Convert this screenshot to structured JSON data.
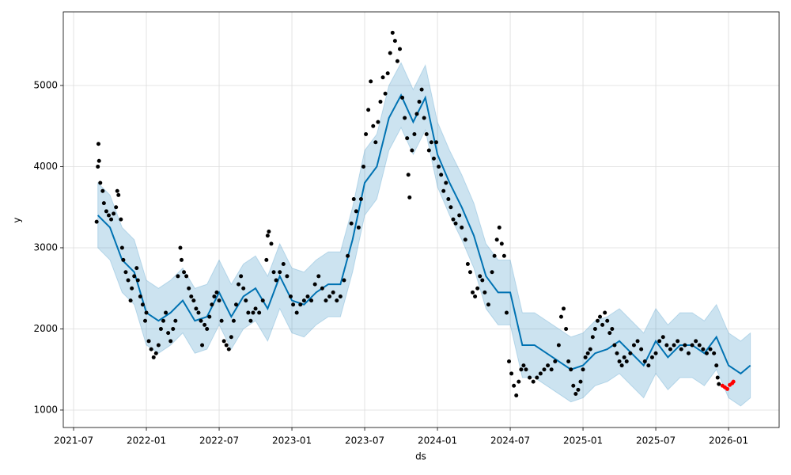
{
  "chart_data": {
    "type": "forecast",
    "x_label": "ds",
    "y_label": "y",
    "grid": true,
    "xlim": [
      -0.85,
      58.17
    ],
    "ylim": [
      785,
      5907
    ],
    "xticks": [
      {
        "value": 0,
        "label": "2021-07"
      },
      {
        "value": 6,
        "label": "2022-01"
      },
      {
        "value": 12,
        "label": "2022-07"
      },
      {
        "value": 18,
        "label": "2023-01"
      },
      {
        "value": 24,
        "label": "2023-07"
      },
      {
        "value": 30,
        "label": "2024-01"
      },
      {
        "value": 36,
        "label": "2024-07"
      },
      {
        "value": 42,
        "label": "2025-01"
      },
      {
        "value": 48,
        "label": "2025-07"
      },
      {
        "value": 54,
        "label": "2026-01"
      }
    ],
    "yticks": [
      1000,
      2000,
      3000,
      4000,
      5000
    ],
    "forecast": {
      "color": "#0072b2",
      "band_color": "#0072b2",
      "x": [
        2,
        3,
        4,
        5,
        6,
        7,
        8,
        9,
        10,
        11,
        12,
        13,
        14,
        15,
        16,
        17,
        18,
        19,
        20,
        21,
        22,
        23,
        24,
        25,
        26,
        27,
        28,
        29,
        30,
        31,
        32,
        33,
        34,
        35,
        36,
        37,
        38,
        39,
        40,
        41,
        42,
        43,
        44,
        45,
        46,
        47,
        48,
        49,
        50,
        51,
        52,
        53,
        54,
        55,
        55.8
      ],
      "values": [
        3400,
        3250,
        2850,
        2700,
        2200,
        2100,
        2200,
        2350,
        2100,
        2150,
        2450,
        2150,
        2400,
        2500,
        2250,
        2650,
        2350,
        2300,
        2450,
        2550,
        2550,
        3100,
        3800,
        4000,
        4600,
        4880,
        4550,
        4850,
        4150,
        3800,
        3500,
        3150,
        2650,
        2450,
        2450,
        1800,
        1800,
        1700,
        1600,
        1500,
        1550,
        1700,
        1750,
        1850,
        1700,
        1550,
        1850,
        1650,
        1800,
        1800,
        1700,
        1900,
        1550,
        1450,
        1550
      ],
      "lower": [
        3000,
        2850,
        2450,
        2300,
        1800,
        1700,
        1800,
        1950,
        1700,
        1750,
        2050,
        1750,
        2000,
        2100,
        1850,
        2250,
        1950,
        1900,
        2050,
        2150,
        2150,
        2700,
        3400,
        3600,
        4200,
        4480,
        4150,
        4450,
        3750,
        3400,
        3100,
        2750,
        2250,
        2050,
        2050,
        1400,
        1400,
        1300,
        1200,
        1100,
        1150,
        1300,
        1350,
        1450,
        1300,
        1150,
        1450,
        1250,
        1400,
        1400,
        1300,
        1500,
        1150,
        1050,
        1150
      ],
      "upper": [
        3800,
        3650,
        3250,
        3100,
        2600,
        2500,
        2600,
        2750,
        2500,
        2550,
        2850,
        2550,
        2800,
        2900,
        2650,
        3050,
        2750,
        2700,
        2850,
        2950,
        2950,
        3500,
        4200,
        4400,
        5000,
        5280,
        4950,
        5250,
        4550,
        4200,
        3900,
        3550,
        3050,
        2850,
        2850,
        2200,
        2200,
        2100,
        2000,
        1900,
        1950,
        2100,
        2150,
        2250,
        2100,
        1950,
        2250,
        2050,
        2200,
        2200,
        2100,
        2300,
        1950,
        1850,
        1950
      ]
    },
    "observed": [
      {
        "color": "#000000",
        "x": [
          1.9,
          2.0,
          2.05,
          2.1,
          2.2,
          2.4,
          2.5,
          2.7,
          2.9,
          3.1,
          3.3,
          3.5,
          3.6,
          3.7,
          3.9,
          4.0,
          4.1,
          4.3,
          4.5,
          4.7,
          4.8,
          5.0,
          5.2,
          5.3,
          5.5,
          5.7,
          5.9,
          6.0,
          6.2,
          6.4,
          6.6,
          6.8,
          7.0,
          7.2,
          7.4,
          7.6,
          7.8,
          8.0,
          8.2,
          8.4,
          8.6,
          8.8,
          8.9,
          9.1,
          9.3,
          9.5,
          9.7,
          9.9,
          10.1,
          10.3,
          10.5,
          10.6,
          10.8,
          11.0,
          11.2,
          11.4,
          11.6,
          11.8,
          12.0,
          12.2,
          12.4,
          12.6,
          12.8,
          13.0,
          13.2,
          13.4,
          13.6,
          13.8,
          14.0,
          14.2,
          14.4,
          14.6,
          14.8,
          15.0,
          15.3,
          15.6,
          15.9,
          16.0,
          16.1,
          16.3,
          16.5,
          16.7,
          17.0,
          17.3,
          17.6,
          17.9,
          18.1,
          18.4,
          18.7,
          19.0,
          19.3,
          19.6,
          19.9,
          20.2,
          20.5,
          20.8,
          21.1,
          21.4,
          21.7,
          22.0,
          22.3,
          22.6,
          22.9,
          23.1,
          23.3,
          23.5,
          23.7,
          23.9,
          24.1,
          24.3,
          24.5,
          24.7,
          24.9,
          25.1,
          25.3,
          25.5,
          25.7,
          25.9,
          26.1,
          26.3,
          26.5,
          26.7,
          26.9,
          27.1,
          27.3,
          27.5,
          27.6,
          27.7,
          27.9,
          28.1,
          28.3,
          28.5,
          28.7,
          28.9,
          29.1,
          29.3,
          29.5,
          29.7,
          29.9,
          30.1,
          30.3,
          30.5,
          30.7,
          30.9,
          31.1,
          31.3,
          31.5,
          31.8,
          32.0,
          32.3,
          32.5,
          32.7,
          32.9,
          33.1,
          33.3,
          33.5,
          33.7,
          33.9,
          34.2,
          34.5,
          34.7,
          34.9,
          35.1,
          35.3,
          35.5,
          35.7,
          35.9,
          36.1,
          36.3,
          36.5,
          36.7,
          36.9,
          37.1,
          37.3,
          37.6,
          37.9,
          38.2,
          38.5,
          38.8,
          39.1,
          39.4,
          39.7,
          40.0,
          40.2,
          40.4,
          40.6,
          40.8,
          41.0,
          41.2,
          41.4,
          41.6,
          41.8,
          42.0,
          42.2,
          42.4,
          42.6,
          42.8,
          43.0,
          43.2,
          43.4,
          43.6,
          43.8,
          44.0,
          44.2,
          44.4,
          44.6,
          44.8,
          45.0,
          45.2,
          45.4,
          45.6,
          45.9,
          46.2,
          46.5,
          46.8,
          47.1,
          47.4,
          47.7,
          48.0,
          48.3,
          48.6,
          48.9,
          49.2,
          49.5,
          49.8,
          50.1,
          50.4,
          50.7,
          51.0,
          51.3,
          51.6,
          51.9,
          52.2,
          52.5,
          52.8,
          53.0,
          53.1,
          53.2
        ],
        "values": [
          3320,
          4000,
          4280,
          4070,
          3800,
          3700,
          3550,
          3450,
          3400,
          3350,
          3420,
          3500,
          3700,
          3650,
          3350,
          3000,
          2850,
          2700,
          2600,
          2350,
          2500,
          2650,
          2750,
          2600,
          2400,
          2300,
          2100,
          2200,
          1850,
          1750,
          1650,
          1700,
          1800,
          2000,
          2100,
          2200,
          1950,
          1850,
          2000,
          2100,
          2650,
          3000,
          2850,
          2700,
          2650,
          2500,
          2400,
          2350,
          2250,
          2200,
          2100,
          1800,
          2050,
          2000,
          2150,
          2300,
          2400,
          2450,
          2350,
          2100,
          1850,
          1800,
          1750,
          1900,
          2100,
          2300,
          2550,
          2650,
          2500,
          2350,
          2200,
          2100,
          2200,
          2250,
          2200,
          2350,
          2850,
          3150,
          3200,
          3050,
          2700,
          2600,
          2700,
          2800,
          2650,
          2400,
          2300,
          2200,
          2300,
          2350,
          2400,
          2350,
          2550,
          2650,
          2500,
          2350,
          2400,
          2450,
          2350,
          2400,
          2600,
          2900,
          3300,
          3600,
          3450,
          3250,
          3600,
          4000,
          4400,
          4700,
          5050,
          4500,
          4300,
          4550,
          4800,
          5100,
          4900,
          5150,
          5400,
          5650,
          5550,
          5300,
          5450,
          4850,
          4600,
          4350,
          3900,
          3620,
          4200,
          4400,
          4650,
          4800,
          4950,
          4600,
          4400,
          4200,
          4300,
          4100,
          4300,
          4000,
          3900,
          3700,
          3800,
          3600,
          3500,
          3350,
          3300,
          3400,
          3250,
          3100,
          2800,
          2700,
          2450,
          2400,
          2500,
          2650,
          2600,
          2450,
          2300,
          2700,
          2900,
          3100,
          3250,
          3050,
          2900,
          2200,
          1600,
          1450,
          1300,
          1180,
          1350,
          1500,
          1550,
          1500,
          1400,
          1350,
          1400,
          1450,
          1500,
          1550,
          1500,
          1600,
          1800,
          2150,
          2250,
          2000,
          1600,
          1500,
          1300,
          1200,
          1250,
          1350,
          1500,
          1650,
          1700,
          1750,
          1900,
          2000,
          2100,
          2150,
          2050,
          2200,
          2100,
          1950,
          2000,
          1800,
          1700,
          1600,
          1550,
          1650,
          1600,
          1700,
          1800,
          1850,
          1750,
          1600,
          1550,
          1650,
          1700,
          1850,
          1900,
          1800,
          1750,
          1800,
          1850,
          1750,
          1800,
          1700,
          1800,
          1850,
          1800,
          1750,
          1700,
          1750,
          1700,
          1550,
          1400,
          1320
        ]
      },
      {
        "color": "#ff0000",
        "x": [
          53.5,
          53.7,
          53.9,
          54.1,
          54.3,
          54.4
        ],
        "values": [
          1300,
          1280,
          1260,
          1310,
          1330,
          1350
        ]
      }
    ]
  }
}
